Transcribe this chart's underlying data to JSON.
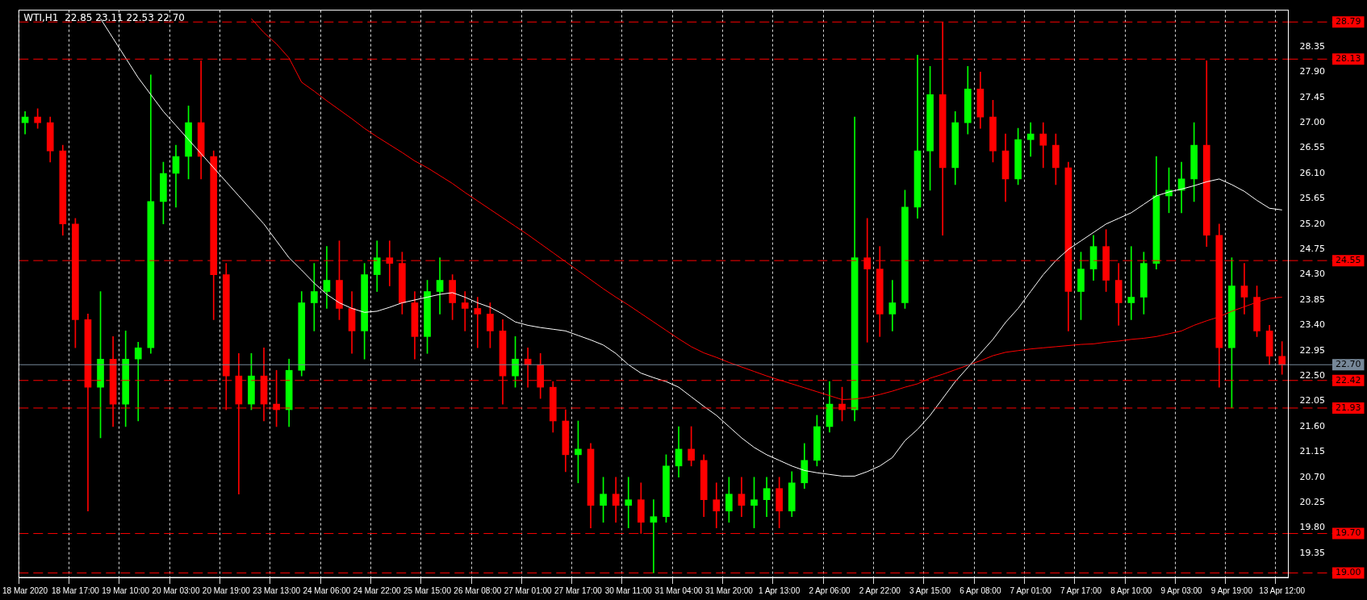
{
  "chart_data": {
    "type": "candlestick",
    "title": "WTI,H1  22.85 23.11 22.53 22.70",
    "categories": [
      "18 Mar 2020",
      null,
      null,
      null,
      "18 Mar 17:00",
      null,
      null,
      null,
      "19 Mar 10:00",
      null,
      null,
      null,
      "20 Mar 03:00",
      null,
      null,
      null,
      "20 Mar 19:00",
      null,
      null,
      null,
      "23 Mar 13:00",
      null,
      null,
      null,
      "24 Mar 06:00",
      null,
      null,
      null,
      "24 Mar 22:00",
      null,
      null,
      null,
      "25 Mar 15:00",
      null,
      null,
      null,
      "26 Mar 08:00",
      null,
      null,
      null,
      "27 Mar 01:00",
      null,
      null,
      null,
      "27 Mar 17:00",
      null,
      null,
      null,
      "30 Mar 11:00",
      null,
      null,
      null,
      "31 Mar 04:00",
      null,
      null,
      null,
      "31 Mar 20:00",
      null,
      null,
      null,
      "1 Apr 13:00",
      null,
      null,
      null,
      "2 Apr 06:00",
      null,
      null,
      null,
      "2 Apr 22:00",
      null,
      null,
      null,
      "3 Apr 15:00",
      null,
      null,
      null,
      "6 Apr 08:00",
      null,
      null,
      null,
      "7 Apr 01:00",
      null,
      null,
      null,
      "7 Apr 17:00",
      null,
      null,
      null,
      "8 Apr 10:00",
      null,
      null,
      null,
      "9 Apr 03:00",
      null,
      null,
      null,
      "9 Apr 19:00",
      null,
      null,
      null,
      "13 Apr 12:00"
    ],
    "ohlc": [
      [
        27.0,
        27.2,
        26.8,
        27.1
      ],
      [
        27.1,
        27.25,
        26.9,
        27.0
      ],
      [
        27.0,
        27.1,
        26.3,
        26.5
      ],
      [
        26.5,
        26.6,
        25.0,
        25.2
      ],
      [
        25.2,
        25.3,
        23.0,
        23.5
      ],
      [
        23.5,
        23.6,
        20.1,
        22.3
      ],
      [
        22.3,
        24.0,
        21.4,
        22.8
      ],
      [
        22.8,
        23.2,
        21.6,
        22.0
      ],
      [
        22.0,
        23.3,
        21.6,
        22.8
      ],
      [
        22.8,
        23.1,
        21.7,
        23.0
      ],
      [
        23.0,
        27.85,
        22.9,
        25.6
      ],
      [
        25.6,
        26.3,
        25.2,
        26.1
      ],
      [
        26.1,
        26.6,
        25.5,
        26.4
      ],
      [
        26.4,
        27.3,
        26.0,
        27.0
      ],
      [
        27.0,
        28.1,
        26.0,
        26.4
      ],
      [
        26.4,
        26.5,
        23.5,
        24.3
      ],
      [
        24.3,
        24.5,
        21.9,
        22.5
      ],
      [
        22.5,
        22.9,
        20.4,
        22.0
      ],
      [
        22.0,
        22.9,
        21.9,
        22.5
      ],
      [
        22.5,
        23.0,
        21.7,
        22.0
      ],
      [
        22.0,
        22.6,
        21.6,
        21.9
      ],
      [
        21.9,
        22.8,
        21.6,
        22.6
      ],
      [
        22.6,
        24.0,
        22.5,
        23.8
      ],
      [
        23.8,
        24.5,
        23.3,
        24.0
      ],
      [
        24.0,
        24.8,
        23.7,
        24.2
      ],
      [
        24.2,
        24.9,
        23.5,
        23.7
      ],
      [
        23.7,
        24.0,
        22.9,
        23.3
      ],
      [
        23.3,
        24.5,
        22.8,
        24.3
      ],
      [
        24.3,
        24.9,
        24.0,
        24.6
      ],
      [
        24.6,
        24.9,
        24.1,
        24.5
      ],
      [
        24.5,
        24.7,
        23.6,
        23.8
      ],
      [
        23.8,
        24.0,
        22.8,
        23.2
      ],
      [
        23.2,
        24.2,
        22.9,
        24.0
      ],
      [
        24.0,
        24.6,
        23.6,
        24.2
      ],
      [
        24.2,
        24.3,
        23.5,
        23.8
      ],
      [
        23.8,
        24.0,
        23.3,
        23.7
      ],
      [
        23.7,
        23.9,
        23.0,
        23.6
      ],
      [
        23.6,
        23.8,
        23.0,
        23.3
      ],
      [
        23.3,
        23.5,
        22.0,
        22.5
      ],
      [
        22.5,
        23.2,
        22.3,
        22.8
      ],
      [
        22.8,
        23.0,
        22.3,
        22.7
      ],
      [
        22.7,
        22.9,
        22.1,
        22.3
      ],
      [
        22.3,
        22.4,
        21.5,
        21.7
      ],
      [
        21.7,
        21.9,
        20.8,
        21.1
      ],
      [
        21.1,
        21.7,
        20.6,
        21.2
      ],
      [
        21.2,
        21.3,
        19.8,
        20.2
      ],
      [
        20.2,
        20.7,
        19.9,
        20.4
      ],
      [
        20.4,
        20.7,
        19.9,
        20.2
      ],
      [
        20.2,
        20.7,
        19.8,
        20.3
      ],
      [
        20.3,
        20.6,
        19.7,
        19.9
      ],
      [
        19.9,
        20.3,
        19.0,
        20.0
      ],
      [
        20.0,
        21.1,
        19.9,
        20.9
      ],
      [
        20.9,
        21.6,
        20.7,
        21.2
      ],
      [
        21.2,
        21.6,
        20.9,
        21.0
      ],
      [
        21.0,
        21.1,
        20.0,
        20.3
      ],
      [
        20.3,
        20.6,
        19.8,
        20.1
      ],
      [
        20.1,
        20.7,
        19.9,
        20.4
      ],
      [
        20.4,
        20.7,
        20.0,
        20.2
      ],
      [
        20.2,
        20.7,
        19.8,
        20.3
      ],
      [
        20.3,
        20.7,
        20.0,
        20.5
      ],
      [
        20.5,
        20.7,
        19.8,
        20.1
      ],
      [
        20.1,
        20.8,
        20.0,
        20.6
      ],
      [
        20.6,
        21.3,
        20.5,
        21.0
      ],
      [
        21.0,
        21.8,
        20.9,
        21.6
      ],
      [
        21.6,
        22.4,
        21.5,
        22.0
      ],
      [
        22.0,
        22.3,
        21.7,
        21.9
      ],
      [
        21.9,
        27.1,
        21.7,
        24.6
      ],
      [
        24.6,
        25.3,
        23.1,
        24.4
      ],
      [
        24.4,
        24.8,
        23.2,
        23.6
      ],
      [
        23.6,
        24.2,
        23.3,
        23.8
      ],
      [
        23.8,
        25.8,
        23.7,
        25.5
      ],
      [
        25.5,
        28.2,
        25.3,
        26.5
      ],
      [
        26.5,
        28.0,
        25.8,
        27.5
      ],
      [
        27.5,
        28.79,
        25.0,
        26.2
      ],
      [
        26.2,
        27.2,
        25.9,
        27.0
      ],
      [
        27.0,
        28.0,
        26.8,
        27.6
      ],
      [
        27.6,
        27.9,
        26.9,
        27.1
      ],
      [
        27.1,
        27.4,
        26.3,
        26.5
      ],
      [
        26.5,
        26.8,
        25.6,
        26.0
      ],
      [
        26.0,
        26.9,
        25.9,
        26.7
      ],
      [
        26.7,
        27.0,
        26.4,
        26.8
      ],
      [
        26.8,
        27.0,
        26.2,
        26.6
      ],
      [
        26.6,
        26.8,
        25.9,
        26.2
      ],
      [
        26.2,
        26.3,
        23.3,
        24.0
      ],
      [
        24.0,
        24.7,
        23.5,
        24.4
      ],
      [
        24.4,
        25.0,
        24.2,
        24.8
      ],
      [
        24.8,
        25.1,
        24.0,
        24.2
      ],
      [
        24.2,
        24.5,
        23.4,
        23.8
      ],
      [
        23.8,
        24.8,
        23.5,
        23.9
      ],
      [
        23.9,
        24.7,
        23.6,
        24.5
      ],
      [
        24.5,
        26.4,
        24.4,
        25.7
      ],
      [
        25.7,
        26.2,
        25.4,
        25.8
      ],
      [
        25.8,
        26.3,
        25.4,
        26.0
      ],
      [
        26.0,
        27.0,
        25.6,
        26.6
      ],
      [
        26.6,
        28.1,
        24.8,
        25.0
      ],
      [
        25.0,
        25.2,
        22.3,
        23.0
      ],
      [
        23.0,
        24.6,
        21.93,
        24.1
      ],
      [
        24.1,
        24.5,
        23.6,
        23.9
      ],
      [
        23.9,
        24.1,
        23.2,
        23.3
      ],
      [
        23.3,
        23.4,
        22.7,
        22.85
      ],
      [
        22.85,
        23.11,
        22.53,
        22.7
      ]
    ],
    "colors": [
      "#00ff00",
      "#ff0000",
      "#ff0000",
      "#ff0000",
      "#ff0000",
      "#ff0000",
      "#00ff00",
      "#ff0000",
      "#00ff00",
      "#00ff00",
      "#00ff00",
      "#00ff00",
      "#00ff00",
      "#00ff00",
      "#ff0000",
      "#ff0000",
      "#ff0000",
      "#ff0000",
      "#00ff00",
      "#ff0000",
      "#ff0000",
      "#00ff00",
      "#00ff00",
      "#00ff00",
      "#00ff00",
      "#ff0000",
      "#ff0000",
      "#00ff00",
      "#00ff00",
      "#ff0000",
      "#ff0000",
      "#ff0000",
      "#00ff00",
      "#00ff00",
      "#ff0000",
      "#ff0000",
      "#ff0000",
      "#ff0000",
      "#ff0000",
      "#00ff00",
      "#ff0000",
      "#ff0000",
      "#ff0000",
      "#ff0000",
      "#00ff00",
      "#ff0000",
      "#00ff00",
      "#ff0000",
      "#00ff00",
      "#ff0000",
      "#00ff00",
      "#00ff00",
      "#00ff00",
      "#ff0000",
      "#ff0000",
      "#ff0000",
      "#00ff00",
      "#ff0000",
      "#00ff00",
      "#00ff00",
      "#ff0000",
      "#00ff00",
      "#00ff00",
      "#00ff00",
      "#00ff00",
      "#ff0000",
      "#00ff00",
      "#ff0000",
      "#ff0000",
      "#00ff00",
      "#00ff00",
      "#00ff00",
      "#00ff00",
      "#ff0000",
      "#00ff00",
      "#00ff00",
      "#ff0000",
      "#ff0000",
      "#ff0000",
      "#00ff00",
      "#00ff00",
      "#ff0000",
      "#ff0000",
      "#ff0000",
      "#00ff00",
      "#00ff00",
      "#ff0000",
      "#ff0000",
      "#00ff00",
      "#00ff00",
      "#00ff00",
      "#00ff00",
      "#00ff00",
      "#00ff00",
      "#ff0000",
      "#ff0000",
      "#00ff00",
      "#ff0000",
      "#ff0000",
      "#ff0000",
      "#ff0000"
    ],
    "series": [
      {
        "type": "line",
        "color": "#ffffff",
        "values": [
          null,
          null,
          null,
          null,
          null,
          null,
          28.85,
          28.5,
          28.15,
          27.8,
          27.5,
          27.2,
          26.95,
          26.7,
          26.45,
          26.2,
          25.95,
          25.7,
          25.45,
          25.2,
          24.9,
          24.6,
          24.38,
          24.15,
          23.95,
          23.8,
          23.7,
          23.63,
          23.65,
          23.72,
          23.8,
          23.85,
          23.9,
          23.95,
          23.98,
          23.9,
          23.8,
          23.72,
          23.6,
          23.46,
          23.4,
          23.36,
          23.33,
          23.3,
          23.22,
          23.14,
          23.05,
          22.9,
          22.7,
          22.55,
          22.47,
          22.4,
          22.3,
          22.13,
          21.96,
          21.8,
          21.6,
          21.4,
          21.23,
          21.1,
          21.0,
          20.9,
          20.82,
          20.78,
          20.75,
          20.72,
          20.72,
          20.8,
          20.9,
          21.05,
          21.35,
          21.55,
          21.8,
          22.1,
          22.4,
          22.65,
          22.9,
          23.15,
          23.45,
          23.7,
          24.0,
          24.3,
          24.55,
          24.75,
          24.9,
          25.05,
          25.2,
          25.3,
          25.4,
          25.55,
          25.7,
          25.77,
          25.82,
          25.88,
          25.95,
          26.0,
          25.9,
          25.78,
          25.62,
          25.48,
          25.45
        ]
      },
      {
        "type": "line",
        "color": "#ff0000",
        "values": [
          null,
          null,
          null,
          null,
          null,
          null,
          null,
          null,
          null,
          null,
          null,
          null,
          null,
          null,
          null,
          null,
          null,
          null,
          28.85,
          28.6,
          28.4,
          28.15,
          27.72,
          27.56,
          27.39,
          27.23,
          27.07,
          26.9,
          26.75,
          26.61,
          26.47,
          26.32,
          26.2,
          26.06,
          25.92,
          25.76,
          25.61,
          25.46,
          25.31,
          25.16,
          25.01,
          24.85,
          24.69,
          24.53,
          24.37,
          24.21,
          24.05,
          23.9,
          23.76,
          23.61,
          23.46,
          23.31,
          23.16,
          23.02,
          22.91,
          22.83,
          22.74,
          22.66,
          22.58,
          22.5,
          22.43,
          22.36,
          22.29,
          22.22,
          22.15,
          22.08,
          22.09,
          22.12,
          22.17,
          22.23,
          22.3,
          22.36,
          22.46,
          22.53,
          22.61,
          22.69,
          22.77,
          22.86,
          22.92,
          22.95,
          22.98,
          23.0,
          23.02,
          23.04,
          23.06,
          23.07,
          23.1,
          23.12,
          23.15,
          23.17,
          23.2,
          23.25,
          23.3,
          23.4,
          23.48,
          23.55,
          23.65,
          23.73,
          23.81,
          23.88,
          23.9
        ]
      }
    ],
    "ylim": [
      18.92,
      29.0
    ],
    "yticks": [
      {
        "value": 19.35,
        "label": "19.35"
      },
      {
        "value": 19.8,
        "label": "19.80"
      },
      {
        "value": 20.25,
        "label": "20.25"
      },
      {
        "value": 20.7,
        "label": "20.70"
      },
      {
        "value": 21.15,
        "label": "21.15"
      },
      {
        "value": 21.6,
        "label": "21.60"
      },
      {
        "value": 22.05,
        "label": "22.05"
      },
      {
        "value": 22.5,
        "label": "22.50"
      },
      {
        "value": 22.95,
        "label": "22.95"
      },
      {
        "value": 23.4,
        "label": "23.40"
      },
      {
        "value": 23.85,
        "label": "23.85"
      },
      {
        "value": 24.3,
        "label": "24.30"
      },
      {
        "value": 24.75,
        "label": "24.75"
      },
      {
        "value": 25.2,
        "label": "25.20"
      },
      {
        "value": 25.65,
        "label": "25.65"
      },
      {
        "value": 26.1,
        "label": "26.10"
      },
      {
        "value": 26.55,
        "label": "26.55"
      },
      {
        "value": 27.0,
        "label": "27.00"
      },
      {
        "value": 27.45,
        "label": "27.45"
      },
      {
        "value": 27.9,
        "label": "27.90"
      },
      {
        "value": 28.35,
        "label": "28.35"
      }
    ],
    "ref_lines": [
      {
        "axis": "y",
        "value": 28.79,
        "label": "28.79",
        "color": "#ff0000",
        "line_style": "dashed"
      },
      {
        "axis": "y",
        "value": 28.13,
        "label": "28.13",
        "color": "#ff0000",
        "line_style": "dashed"
      },
      {
        "axis": "y",
        "value": 24.55,
        "label": "24.55",
        "color": "#ff0000",
        "line_style": "dashed"
      },
      {
        "axis": "y",
        "value": 22.7,
        "label": "22.70",
        "color": "#778899",
        "line_style": "solid"
      },
      {
        "axis": "y",
        "value": 22.42,
        "label": "22.42",
        "color": "#ff0000",
        "line_style": "dashed"
      },
      {
        "axis": "y",
        "value": 21.93,
        "label": "21.93",
        "color": "#ff0000",
        "line_style": "dashed"
      },
      {
        "axis": "y",
        "value": 19.7,
        "label": "19.70",
        "color": "#ff0000",
        "line_style": "dashed"
      },
      {
        "axis": "y",
        "value": 19.0,
        "label": "19.00",
        "color": "#ff0000",
        "line_style": "dashed"
      }
    ],
    "grid": "x",
    "legend": false
  }
}
